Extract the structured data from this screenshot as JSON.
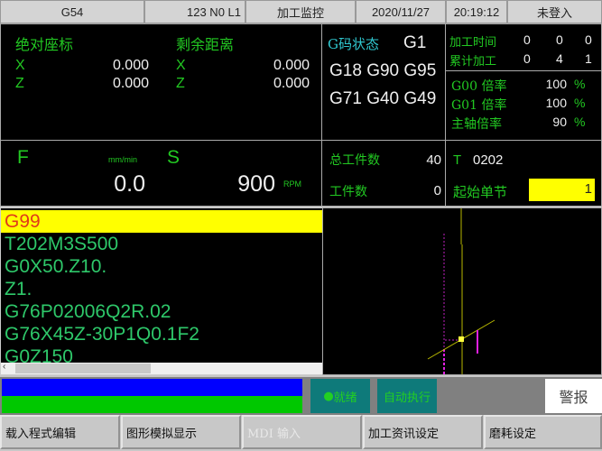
{
  "header": {
    "coord": "G54",
    "program": "123 N0 L1",
    "mode": "加工监控",
    "date": "2020/11/27",
    "time": "20:19:12",
    "user": "未登入"
  },
  "position": {
    "abs_title": "绝对座标",
    "remain_title": "剩余距离",
    "abs": [
      {
        "axis": "X",
        "value": "0.000"
      },
      {
        "axis": "Z",
        "value": "0.000"
      }
    ],
    "remain": [
      {
        "axis": "X",
        "value": "0.000"
      },
      {
        "axis": "Z",
        "value": "0.000"
      }
    ]
  },
  "gcode": {
    "title": "G码状态",
    "current": "G1",
    "line1": "G18 G90 G95",
    "line2": "G71 G40 G49"
  },
  "times": {
    "rows": [
      {
        "label": "加工时间",
        "v": [
          "0",
          "0",
          "0"
        ]
      },
      {
        "label": "累计加工",
        "v": [
          "0",
          "4",
          "1"
        ]
      }
    ]
  },
  "rates": {
    "rows": [
      {
        "label": "G00 倍率",
        "value": "100",
        "unit": "%"
      },
      {
        "label": "G01 倍率",
        "value": "100",
        "unit": "%"
      },
      {
        "label": "主轴倍率",
        "value": "90",
        "unit": "%"
      }
    ]
  },
  "feed": {
    "f_label": "F",
    "f_unit": "mm/min",
    "f_value": "0.0",
    "s_label": "S",
    "s_value": "900",
    "s_unit": "RPM"
  },
  "counts": {
    "total_label": "总工件数",
    "total": "40",
    "parts_label": "工件数",
    "parts": "0"
  },
  "tool": {
    "label": "T",
    "value": "0202",
    "start_label": "起始单节",
    "start_value": "1"
  },
  "program_lines": [
    "G99",
    "T202M3S500",
    "G0X50.Z10.",
    "Z1.",
    "G76P02006Q2R.02",
    "G76X45Z-30P1Q0.1F2",
    "G0Z150"
  ],
  "status": {
    "ready": "就绪",
    "auto": "自动执行",
    "alarm": "警报"
  },
  "buttons": [
    "载入程式编辑",
    "图形模拟显示",
    "MDI 输入",
    "加工资讯设定",
    "磨耗设定"
  ],
  "colors": {
    "highlight": "#ffff00",
    "text_green": "#22c822",
    "status_teal": "#0e7a7a",
    "blue_bar": "#0000ff",
    "green_bar": "#00c800"
  }
}
